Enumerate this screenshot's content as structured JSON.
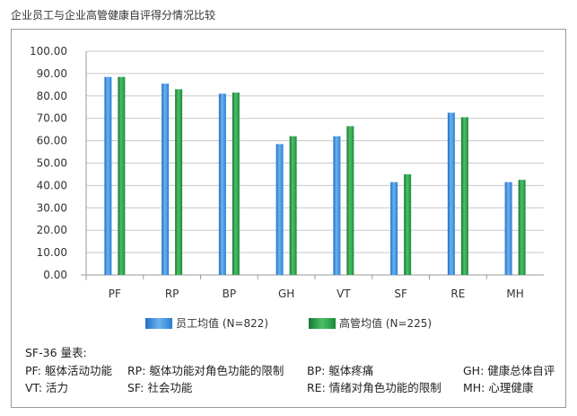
{
  "page_title": "企业员工与企业高管健康自评得分情况比较",
  "chart_data": {
    "type": "bar",
    "categories": [
      "PF",
      "RP",
      "BP",
      "GH",
      "VT",
      "SF",
      "RE",
      "MH"
    ],
    "series": [
      {
        "name": "员工均值 (N=822)",
        "values": [
          88.5,
          85.5,
          81.0,
          58.5,
          62.0,
          41.5,
          72.5,
          41.5
        ],
        "color": "#3d8fdc"
      },
      {
        "name": "高管均值 (N=225)",
        "values": [
          88.5,
          83.0,
          81.5,
          62.0,
          66.5,
          45.0,
          70.5,
          42.5
        ],
        "color": "#2a9a45"
      }
    ],
    "ylim": [
      0,
      100
    ],
    "ytick_step": 10,
    "ytick_labels": [
      "0.00",
      "10.00",
      "20.00",
      "30.00",
      "40.00",
      "50.00",
      "60.00",
      "70.00",
      "80.00",
      "90.00",
      "100.00"
    ],
    "grid": true,
    "legend_position": "bottom"
  },
  "notes": {
    "header": "SF-36 量表:",
    "row1": [
      "PF: 躯体活动功能",
      "RP: 躯体功能对角色功能的限制",
      "BP: 躯体疼痛",
      "GH: 健康总体自评"
    ],
    "row2": [
      "VT: 活力",
      "SF: 社会功能",
      "RE: 情绪对角色功能的限制",
      "MH: 心理健康"
    ]
  }
}
